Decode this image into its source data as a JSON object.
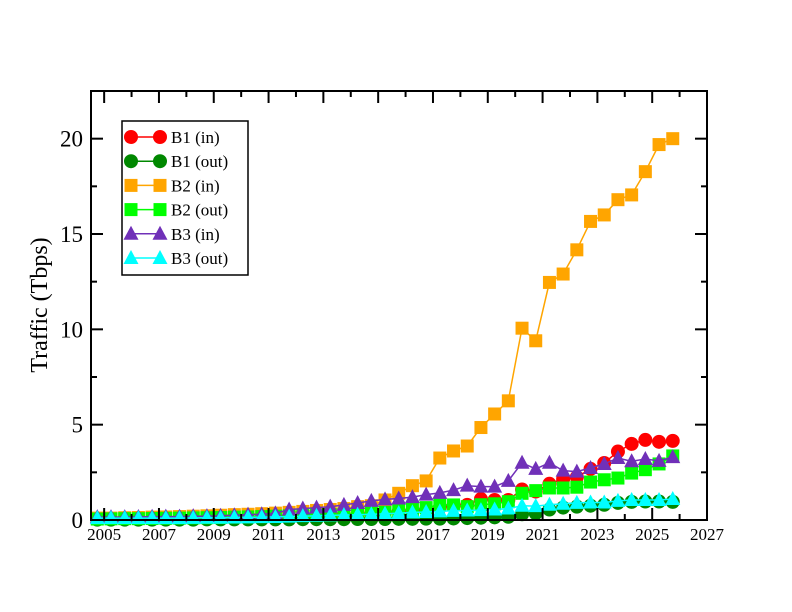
{
  "chart_data": {
    "type": "line",
    "title": "",
    "xlabel": "",
    "ylabel": "Traffic (Tbps)",
    "xlim": [
      2004.52,
      2027
    ],
    "ylim": [
      0,
      22.5
    ],
    "x_ticks": [
      "2005",
      "2007",
      "2009",
      "2011",
      "2013",
      "2015",
      "2017",
      "2019",
      "2021",
      "2023",
      "2025",
      "2027"
    ],
    "y_ticks": [
      "0",
      "5",
      "10",
      "15",
      "20"
    ],
    "grid": false,
    "legend_position": "top-left",
    "x": [
      2004.75,
      2005.25,
      2005.75,
      2006.25,
      2006.75,
      2007.25,
      2007.75,
      2008.25,
      2008.75,
      2009.25,
      2009.75,
      2010.25,
      2010.75,
      2011.25,
      2011.75,
      2012.25,
      2012.75,
      2013.25,
      2013.75,
      2014.25,
      2014.75,
      2015.25,
      2015.75,
      2016.25,
      2016.75,
      2017.25,
      2017.75,
      2018.25,
      2018.75,
      2019.25,
      2019.75,
      2020.25,
      2020.75,
      2021.25,
      2021.75,
      2022.25,
      2022.75,
      2023.25,
      2023.75,
      2024.25,
      2024.75,
      2025.25,
      2025.75
    ],
    "series": [
      {
        "name": "B1 (in)",
        "color": "#ff0000",
        "marker": "circle",
        "values": [
          0.05,
          0.05,
          0.05,
          0.06,
          0.06,
          0.07,
          0.08,
          0.08,
          0.09,
          0.1,
          0.1,
          0.12,
          0.13,
          0.15,
          0.17,
          0.2,
          0.22,
          0.25,
          0.28,
          0.3,
          0.35,
          0.4,
          0.45,
          0.5,
          0.55,
          0.65,
          0.75,
          0.79,
          1.1,
          1.05,
          1.05,
          1.6,
          1.49,
          1.9,
          2.15,
          2.25,
          2.68,
          2.99,
          3.59,
          3.99,
          4.2,
          4.1,
          4.15
        ]
      },
      {
        "name": "B1 (out)",
        "color": "#008800",
        "marker": "circle",
        "values": [
          0.02,
          0.02,
          0.02,
          0.02,
          0.02,
          0.02,
          0.02,
          0.02,
          0.03,
          0.03,
          0.03,
          0.03,
          0.03,
          0.03,
          0.03,
          0.04,
          0.04,
          0.04,
          0.04,
          0.05,
          0.05,
          0.05,
          0.06,
          0.06,
          0.07,
          0.07,
          0.08,
          0.1,
          0.12,
          0.14,
          0.17,
          0.3,
          0.35,
          0.55,
          0.65,
          0.7,
          0.75,
          0.8,
          0.9,
          0.95,
          0.97,
          0.97,
          0.95
        ]
      },
      {
        "name": "B2 (in)",
        "color": "#ffa500",
        "marker": "square",
        "values": [
          0.1,
          0.1,
          0.12,
          0.13,
          0.15,
          0.16,
          0.18,
          0.2,
          0.22,
          0.25,
          0.28,
          0.3,
          0.33,
          0.36,
          0.4,
          0.45,
          0.5,
          0.55,
          0.6,
          0.7,
          0.75,
          1.05,
          1.4,
          1.8,
          2.05,
          3.25,
          3.62,
          3.88,
          4.85,
          5.56,
          6.25,
          10.06,
          9.4,
          12.46,
          12.9,
          14.17,
          15.66,
          16.0,
          16.8,
          17.05,
          18.27,
          19.69,
          20.0
        ]
      },
      {
        "name": "B2 (out)",
        "color": "#00ff00",
        "marker": "square",
        "values": [
          0.05,
          0.06,
          0.07,
          0.07,
          0.08,
          0.09,
          0.1,
          0.11,
          0.12,
          0.13,
          0.15,
          0.16,
          0.18,
          0.2,
          0.22,
          0.24,
          0.26,
          0.28,
          0.3,
          0.33,
          0.36,
          0.4,
          0.5,
          0.55,
          0.65,
          0.79,
          0.79,
          0.7,
          0.8,
          0.85,
          0.96,
          1.4,
          1.54,
          1.68,
          1.68,
          1.72,
          1.99,
          2.11,
          2.2,
          2.46,
          2.64,
          2.94,
          3.36
        ]
      },
      {
        "name": "B3 (in)",
        "color": "#7030b8",
        "marker": "triangle",
        "values": [
          0.15,
          0.15,
          0.15,
          0.16,
          0.17,
          0.18,
          0.18,
          0.2,
          0.2,
          0.22,
          0.25,
          0.28,
          0.3,
          0.35,
          0.55,
          0.6,
          0.65,
          0.7,
          0.79,
          0.89,
          1.0,
          1.08,
          1.13,
          1.2,
          1.33,
          1.42,
          1.57,
          1.8,
          1.75,
          1.75,
          2.05,
          3.0,
          2.68,
          3.0,
          2.59,
          2.54,
          2.73,
          2.94,
          3.25,
          3.08,
          3.2,
          3.1,
          3.3
        ]
      },
      {
        "name": "B3 (out)",
        "color": "#00ffff",
        "marker": "triangle",
        "values": [
          0.1,
          0.1,
          0.1,
          0.1,
          0.1,
          0.1,
          0.1,
          0.11,
          0.12,
          0.12,
          0.13,
          0.14,
          0.15,
          0.16,
          0.18,
          0.2,
          0.22,
          0.24,
          0.26,
          0.28,
          0.3,
          0.33,
          0.36,
          0.4,
          0.42,
          0.45,
          0.48,
          0.5,
          0.52,
          0.55,
          0.6,
          0.75,
          0.73,
          0.8,
          0.85,
          0.9,
          0.92,
          0.92,
          1.0,
          1.05,
          1.05,
          1.05,
          1.1
        ]
      }
    ]
  }
}
